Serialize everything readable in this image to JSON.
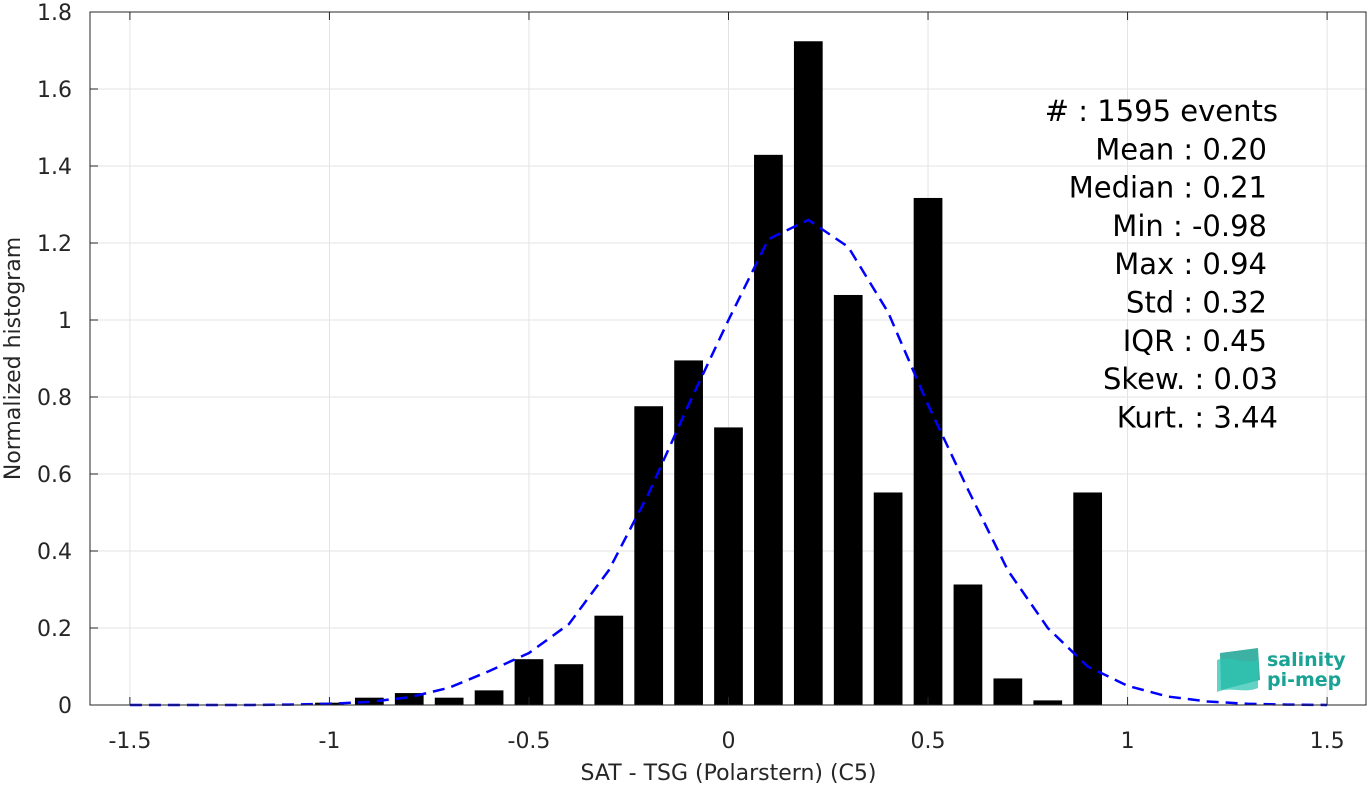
{
  "chart_data": {
    "type": "bar",
    "xlabel": "SAT - TSG (Polarstern) (C5)",
    "ylabel": "Normalized histogram",
    "xlim": [
      -1.6,
      1.6
    ],
    "ylim": [
      0,
      1.8
    ],
    "x_ticks": [
      -1.5,
      -1,
      -0.5,
      0,
      0.5,
      1,
      1.5
    ],
    "x_tick_labels": [
      "-1.5",
      "-1",
      "-0.5",
      "0",
      "0.5",
      "1",
      "1.5"
    ],
    "y_ticks": [
      0,
      0.2,
      0.4,
      0.6,
      0.8,
      1,
      1.2,
      1.4,
      1.6,
      1.8
    ],
    "y_tick_labels": [
      "0",
      "0.2",
      "0.4",
      "0.6",
      "0.8",
      "1",
      "1.2",
      "1.4",
      "1.6",
      "1.8"
    ],
    "grid": true,
    "bar_color": "#000000",
    "bar_width": 0.072,
    "bars": {
      "x": [
        -1.0,
        -0.9,
        -0.8,
        -0.7,
        -0.6,
        -0.5,
        -0.4,
        -0.3,
        -0.2,
        -0.1,
        0.0,
        0.1,
        0.2,
        0.3,
        0.4,
        0.5,
        0.6,
        0.7,
        0.8,
        0.9
      ],
      "values": [
        0.006,
        0.019,
        0.031,
        0.019,
        0.038,
        0.119,
        0.106,
        0.232,
        0.776,
        0.895,
        0.721,
        1.429,
        1.724,
        1.065,
        0.552,
        1.317,
        0.313,
        0.069,
        0.012,
        0.552
      ]
    },
    "fit_curve": {
      "style": "dashed",
      "color": "#0000ff",
      "x": [
        -1.5,
        -1.4,
        -1.3,
        -1.2,
        -1.1,
        -1.0,
        -0.9,
        -0.8,
        -0.7,
        -0.6,
        -0.5,
        -0.4,
        -0.3,
        -0.2,
        -0.1,
        0.0,
        0.1,
        0.2,
        0.3,
        0.4,
        0.5,
        0.6,
        0.7,
        0.8,
        0.9,
        1.0,
        1.1,
        1.2,
        1.3,
        1.4,
        1.5
      ],
      "y": [
        0.0,
        0.0,
        0.0,
        0.0,
        0.001,
        0.003,
        0.008,
        0.02,
        0.045,
        0.088,
        0.135,
        0.21,
        0.35,
        0.55,
        0.78,
        1.0,
        1.21,
        1.26,
        1.19,
        1.02,
        0.78,
        0.56,
        0.35,
        0.2,
        0.1,
        0.05,
        0.022,
        0.009,
        0.003,
        0.001,
        0.0
      ]
    },
    "annotations": [
      "#  : 1595 events",
      "Mean : 0.20",
      "Median : 0.21",
      "Min : -0.98",
      "Max : 0.94",
      "Std : 0.32",
      "IQR : 0.45",
      "Skew. : 0.03",
      "Kurt. : 3.44"
    ]
  },
  "logo": {
    "line1": "salinity",
    "line2": "pi-mep",
    "color": "#1aa394"
  }
}
